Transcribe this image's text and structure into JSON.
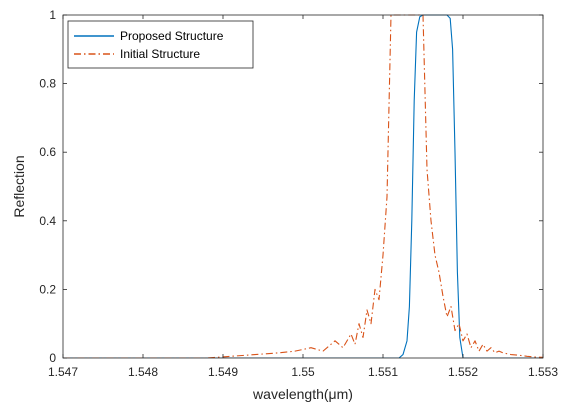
{
  "chart_data": {
    "type": "line",
    "xlabel": "wavelength(μm)",
    "ylabel": "Reflection",
    "xlim": [
      1.547,
      1.553
    ],
    "ylim": [
      0,
      1
    ],
    "x_ticks": [
      1.547,
      1.548,
      1.549,
      1.55,
      1.551,
      1.552,
      1.553
    ],
    "x_tick_labels": [
      "1.547",
      "1.548",
      "1.549",
      "1.55",
      "1.551",
      "1.552",
      "1.553"
    ],
    "y_ticks": [
      0,
      0.2,
      0.4,
      0.6,
      0.8,
      1
    ],
    "y_tick_labels": [
      "0",
      "0.2",
      "0.4",
      "0.6",
      "0.8",
      "1"
    ],
    "grid": false,
    "legend_position": "top-left",
    "series": [
      {
        "name": "Proposed Structure",
        "color": "#0072bd",
        "style": "solid",
        "x": [
          1.547,
          1.5512,
          1.55125,
          1.5513,
          1.55133,
          1.55136,
          1.55139,
          1.55142,
          1.55146,
          1.5515,
          1.5518,
          1.55184,
          1.55187,
          1.5519,
          1.55193,
          1.55196,
          1.552,
          1.553
        ],
        "y": [
          0,
          0,
          0.01,
          0.05,
          0.15,
          0.4,
          0.75,
          0.95,
          0.995,
          1,
          1,
          0.99,
          0.9,
          0.6,
          0.25,
          0.06,
          0,
          0
        ]
      },
      {
        "name": "Initial Structure",
        "color": "#d95319",
        "style": "dashdot",
        "x": [
          1.547,
          1.5488,
          1.5491,
          1.5494,
          1.5497,
          1.5499,
          1.5501,
          1.55025,
          1.5504,
          1.5505,
          1.5506,
          1.55065,
          1.5507,
          1.55075,
          1.5508,
          1.55085,
          1.5509,
          1.55095,
          1.551,
          1.55105,
          1.5511,
          1.5512,
          1.55125,
          1.5513,
          1.5514,
          1.55145,
          1.5515,
          1.55155,
          1.5516,
          1.55165,
          1.5517,
          1.55175,
          1.5518,
          1.55185,
          1.5519,
          1.55195,
          1.552,
          1.55205,
          1.5521,
          1.55215,
          1.5522,
          1.55225,
          1.5523,
          1.55235,
          1.5524,
          1.55245,
          1.5525,
          1.5526,
          1.5527,
          1.5528,
          1.5529,
          1.553
        ],
        "y": [
          0,
          0,
          0.005,
          0.01,
          0.015,
          0.02,
          0.03,
          0.02,
          0.05,
          0.03,
          0.07,
          0.04,
          0.1,
          0.06,
          0.14,
          0.1,
          0.2,
          0.17,
          0.3,
          0.47,
          1,
          1,
          1,
          1,
          1,
          1,
          1,
          0.55,
          0.4,
          0.3,
          0.25,
          0.18,
          0.12,
          0.15,
          0.08,
          0.1,
          0.05,
          0.07,
          0.03,
          0.05,
          0.02,
          0.04,
          0.02,
          0.03,
          0.015,
          0.02,
          0.015,
          0.01,
          0.008,
          0.005,
          0.003,
          0.002
        ]
      }
    ]
  }
}
